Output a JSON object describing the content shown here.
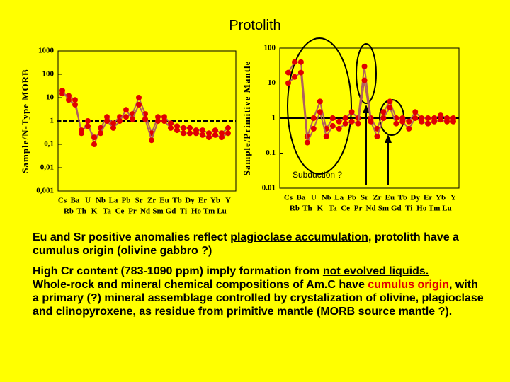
{
  "title": "Protolith",
  "chart_data": [
    {
      "type": "line",
      "ylabel": "Sample/N-Type MORB",
      "log_scale": true,
      "reference_line": 1,
      "reference_style": "dashed",
      "categories": [
        "Cs",
        "Rb",
        "Ba",
        "Th",
        "U",
        "K",
        "Nb",
        "Ta",
        "La",
        "Ce",
        "Pb",
        "Pr",
        "Sr",
        "Nd",
        "Zr",
        "Sm",
        "Eu",
        "Gd",
        "Tb",
        "Ti",
        "Dy",
        "Ho",
        "Er",
        "Tm",
        "Yb",
        "Lu",
        "Y"
      ],
      "ylim": [
        0.001,
        1000
      ],
      "yticks": [
        1000,
        100,
        10,
        1,
        {
          "value": 0.1,
          "label": "0,1"
        },
        {
          "value": 0.01,
          "label": "0,01"
        },
        {
          "value": 0.001,
          "label": "0,001"
        }
      ],
      "series": [
        {
          "color": "#e00000",
          "line_color": "#b06060",
          "values": [
            15,
            12,
            8,
            0.3,
            1,
            0.1,
            0.5,
            1.5,
            0.8,
            1.5,
            1.5,
            2,
            10,
            2,
            0.3,
            1.5,
            1.5,
            0.8,
            0.6,
            0.5,
            0.5,
            0.4,
            0.4,
            0.3,
            0.4,
            0.3,
            0.5
          ]
        },
        {
          "color": "#e00000",
          "line_color": "#b06060",
          "values": [
            20,
            8,
            5,
            0.4,
            0.6,
            0.2,
            0.3,
            1,
            0.5,
            1,
            3,
            1.2,
            5,
            1.2,
            0.15,
            1,
            1,
            0.5,
            0.4,
            0.3,
            0.3,
            0.3,
            0.25,
            0.2,
            0.25,
            0.2,
            0.3
          ]
        }
      ]
    },
    {
      "type": "line",
      "ylabel": "Sample/Primitive Mantle",
      "log_scale": true,
      "reference_line": 1,
      "reference_style": "solid",
      "annotation": "Subduction ?",
      "categories": [
        "Cs",
        "Rb",
        "Ba",
        "Th",
        "U",
        "K",
        "Nb",
        "Ta",
        "La",
        "Ce",
        "Pb",
        "Pr",
        "Sr",
        "Nd",
        "Zr",
        "Sm",
        "Eu",
        "Gd",
        "Tb",
        "Ti",
        "Dy",
        "Ho",
        "Er",
        "Tm",
        "Yb",
        "Lu",
        "Y"
      ],
      "ylim": [
        0.01,
        100
      ],
      "yticks": [
        100,
        10,
        1,
        0.1,
        0.01
      ],
      "series": [
        {
          "color": "#e00000",
          "line_color": "#b06060",
          "values": [
            20,
            40,
            40,
            0.3,
            1,
            3,
            0.5,
            1,
            0.8,
            1,
            1.5,
            1,
            30,
            1,
            0.5,
            1.5,
            3,
            1,
            1,
            0.8,
            1.5,
            1,
            1,
            1,
            1.2,
            1,
            1
          ]
        },
        {
          "color": "#e00000",
          "line_color": "#b06060",
          "values": [
            10,
            15,
            20,
            0.2,
            0.5,
            1.5,
            0.3,
            0.6,
            0.5,
            0.7,
            0.8,
            0.7,
            12,
            0.8,
            0.3,
            1,
            2,
            0.7,
            0.8,
            0.5,
            1,
            0.8,
            0.7,
            0.8,
            0.9,
            0.8,
            0.8
          ]
        }
      ]
    }
  ],
  "paragraphs": [
    [
      {
        "text": "Eu and Sr positive anomalies reflect "
      },
      {
        "text": "plagioclase accumulation",
        "style": "underline"
      },
      {
        "text": ", protolith have a cumulus origin (olivine gabbro ?)"
      }
    ],
    [
      {
        "text": "High Cr content  (783-1090 ppm) imply formation from "
      },
      {
        "text": "not evolved liquids.",
        "style": "underline"
      }
    ],
    [
      {
        "text": "Whole-rock and mineral chemical compositions of Am.C have "
      },
      {
        "text": "cumulus origin",
        "style": "red"
      },
      {
        "text": ", with a primary (?) mineral assemblage controlled by crystalization of olivine, plagioclase and clinopyroxene, "
      },
      {
        "text": "as residue from primitive mantle (MORB source mantle ?).",
        "style": "underline"
      }
    ]
  ]
}
